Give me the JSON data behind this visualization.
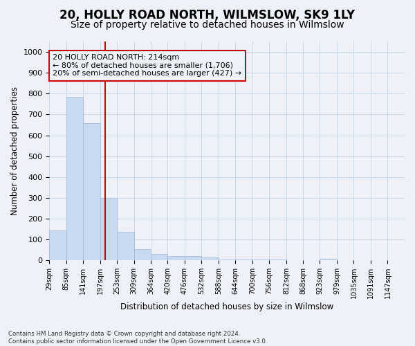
{
  "title": "20, HOLLY ROAD NORTH, WILMSLOW, SK9 1LY",
  "subtitle": "Size of property relative to detached houses in Wilmslow",
  "xlabel": "Distribution of detached houses by size in Wilmslow",
  "ylabel": "Number of detached properties",
  "bar_edges": [
    29,
    85,
    141,
    197,
    253,
    309,
    364,
    420,
    476,
    532,
    588,
    644,
    700,
    756,
    812,
    868,
    923,
    979,
    1035,
    1091,
    1147
  ],
  "bar_heights": [
    145,
    783,
    657,
    299,
    138,
    55,
    30,
    22,
    22,
    15,
    6,
    4,
    4,
    4,
    1,
    0,
    8,
    0,
    0,
    0,
    0
  ],
  "bar_color": "#c9d9f0",
  "bar_edge_color": "#a0b8d8",
  "vline_x": 214,
  "vline_color": "#cc0000",
  "annotation_text": "20 HOLLY ROAD NORTH: 214sqm\n← 80% of detached houses are smaller (1,706)\n20% of semi-detached houses are larger (427) →",
  "annotation_box_color": "#cc0000",
  "footer_text": "Contains HM Land Registry data © Crown copyright and database right 2024.\nContains public sector information licensed under the Open Government Licence v3.0.",
  "tick_labels": [
    "29sqm",
    "85sqm",
    "141sqm",
    "197sqm",
    "253sqm",
    "309sqm",
    "364sqm",
    "420sqm",
    "476sqm",
    "532sqm",
    "588sqm",
    "644sqm",
    "700sqm",
    "756sqm",
    "812sqm",
    "868sqm",
    "923sqm",
    "979sqm",
    "1035sqm",
    "1091sqm",
    "1147sqm"
  ],
  "ylim": [
    0,
    1050
  ],
  "grid_color": "#c8d8e8",
  "bg_color": "#eef2f8",
  "title_fontsize": 12,
  "subtitle_fontsize": 10
}
